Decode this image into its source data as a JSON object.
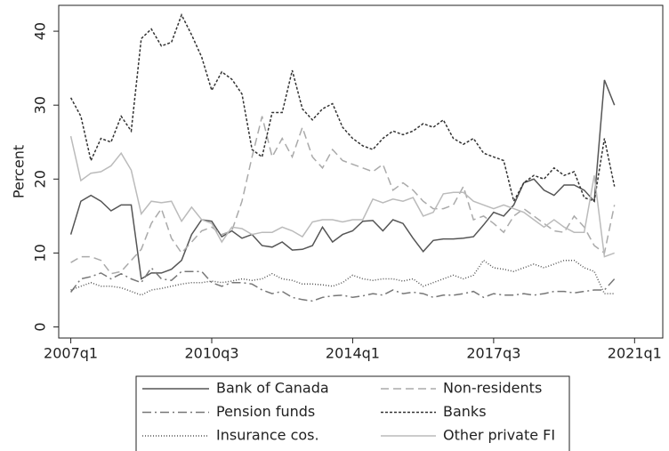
{
  "chart_data": {
    "type": "line",
    "y_label": "Percent",
    "x": [
      2007,
      2007.25,
      2007.5,
      2007.75,
      2008,
      2008.25,
      2008.5,
      2008.75,
      2009,
      2009.25,
      2009.5,
      2009.75,
      2010,
      2010.25,
      2010.5,
      2010.75,
      2011,
      2011.25,
      2011.5,
      2011.75,
      2012,
      2012.25,
      2012.5,
      2012.75,
      2013,
      2013.25,
      2013.5,
      2013.75,
      2014,
      2014.25,
      2014.5,
      2014.75,
      2015,
      2015.25,
      2015.5,
      2015.75,
      2016,
      2016.25,
      2016.5,
      2016.75,
      2017,
      2017.25,
      2017.5,
      2017.75,
      2018,
      2018.25,
      2018.5,
      2018.75,
      2019,
      2019.25,
      2019.5,
      2019.75,
      2020,
      2020.25,
      2020.5
    ],
    "xlim": [
      2006.7,
      2021.7
    ],
    "xticks": [
      {
        "value": 2007,
        "label": "2007q1"
      },
      {
        "value": 2010.5,
        "label": "2010q3"
      },
      {
        "value": 2014,
        "label": "2014q1"
      },
      {
        "value": 2017.5,
        "label": "2017q3"
      },
      {
        "value": 2021,
        "label": "2021q1"
      }
    ],
    "ylim": [
      -1.5,
      43.5
    ],
    "yticks": [
      0,
      10,
      20,
      30,
      40
    ],
    "grid": false,
    "legend": "bottom",
    "series": [
      {
        "name": "Bank of Canada",
        "color": "#555555",
        "dash": "solid",
        "values": [
          12.5,
          17,
          17.8,
          17,
          15.7,
          16.5,
          16.5,
          6.5,
          7.3,
          7.3,
          7.8,
          9,
          12.5,
          14.5,
          14.3,
          12.2,
          13,
          12,
          12.5,
          11,
          10.8,
          11.5,
          10.4,
          10.5,
          11,
          13.5,
          11.5,
          12.5,
          13,
          14.3,
          14.4,
          13,
          14.5,
          14,
          12,
          10.2,
          11.7,
          11.9,
          11.9,
          12,
          12.2,
          13.8,
          15.5,
          15,
          16.5,
          19.5,
          20,
          18.5,
          17.8,
          19.2,
          19.2,
          18.5,
          17,
          33.4,
          30
        ]
      },
      {
        "name": "Non-residents",
        "color": "#aaaaaa",
        "dash": "dashed",
        "values": [
          8.7,
          9.5,
          9.5,
          9,
          7.2,
          7.5,
          9,
          10.5,
          14,
          16,
          12,
          10,
          11.5,
          13,
          13.5,
          12.5,
          13,
          17,
          23,
          28.5,
          23,
          25.5,
          23,
          27,
          23,
          21.5,
          24,
          22.5,
          22,
          21.5,
          21,
          22,
          18.5,
          19.5,
          18.5,
          17,
          16,
          16,
          16.5,
          19,
          14.5,
          15,
          14,
          12.8,
          15,
          16,
          15,
          14,
          13,
          12.8,
          15,
          13.5,
          11,
          10,
          16.5
        ]
      },
      {
        "name": "Pension funds",
        "color": "#777777",
        "dash": "dashdot",
        "values": [
          4.7,
          6.5,
          6.8,
          7.3,
          6.5,
          7.2,
          6.5,
          6,
          8,
          6.5,
          6.3,
          7.5,
          7.5,
          7.5,
          6,
          5.5,
          6,
          6,
          5.8,
          5,
          4.5,
          4.8,
          4,
          3.7,
          3.5,
          4,
          4.2,
          4.3,
          4,
          4.2,
          4.5,
          4.3,
          5,
          4.5,
          4.7,
          4.5,
          4,
          4.3,
          4.3,
          4.5,
          4.8,
          4,
          4.5,
          4.3,
          4.3,
          4.5,
          4.3,
          4.5,
          4.8,
          4.8,
          4.6,
          4.8,
          5,
          5,
          6.5
        ]
      },
      {
        "name": "Banks",
        "color": "#333333",
        "dash": "shortdash",
        "values": [
          31,
          28.5,
          22.5,
          25.5,
          25,
          28.5,
          26.5,
          39,
          40.3,
          38,
          38.5,
          42.2,
          39.5,
          36.5,
          32,
          34.5,
          33.5,
          31.5,
          24,
          23,
          29,
          29,
          34.7,
          29.5,
          28,
          29.5,
          30.2,
          27,
          25.5,
          24.5,
          24,
          25.5,
          26.5,
          26,
          26.5,
          27.5,
          27,
          28,
          25.5,
          24.7,
          25.5,
          23.5,
          23,
          22.5,
          17,
          19.5,
          20.5,
          20,
          21.5,
          20.5,
          21,
          17.5,
          17,
          25.5,
          19
        ]
      },
      {
        "name": "Insurance cos.",
        "color": "#555555",
        "dash": "dotted",
        "values": [
          5,
          5.5,
          6,
          5.5,
          5.5,
          5.3,
          4.8,
          4.3,
          5,
          5.2,
          5.5,
          5.8,
          6,
          6,
          6.2,
          6,
          6.2,
          6.5,
          6.3,
          6.5,
          7.2,
          6.5,
          6.3,
          5.8,
          5.8,
          5.7,
          5.5,
          6,
          7,
          6.5,
          6.3,
          6.5,
          6.5,
          6.2,
          6.5,
          5.5,
          6,
          6.5,
          7,
          6.5,
          7,
          9,
          8,
          7.8,
          7.5,
          8,
          8.5,
          8,
          8.5,
          9,
          9,
          8,
          7.5,
          4.5,
          4.5
        ]
      },
      {
        "name": "Other private FI",
        "color": "#bbbbbb",
        "dash": "solid",
        "values": [
          25.8,
          19.8,
          20.8,
          21,
          21.8,
          23.5,
          21.2,
          15.3,
          17,
          16.8,
          17,
          14.3,
          16.2,
          14.5,
          14,
          11.5,
          13.5,
          13.3,
          12.5,
          12.8,
          12.8,
          13.5,
          13,
          12.2,
          14.2,
          14.5,
          14.5,
          14.2,
          14.5,
          14.5,
          17.3,
          16.8,
          17.3,
          17,
          17.5,
          15,
          15.5,
          18,
          18.2,
          18.2,
          17,
          16.5,
          16,
          16.5,
          16,
          15.5,
          14.5,
          13.5,
          14.5,
          13.5,
          12.8,
          12.8,
          20.5,
          9.5,
          10
        ]
      }
    ]
  }
}
